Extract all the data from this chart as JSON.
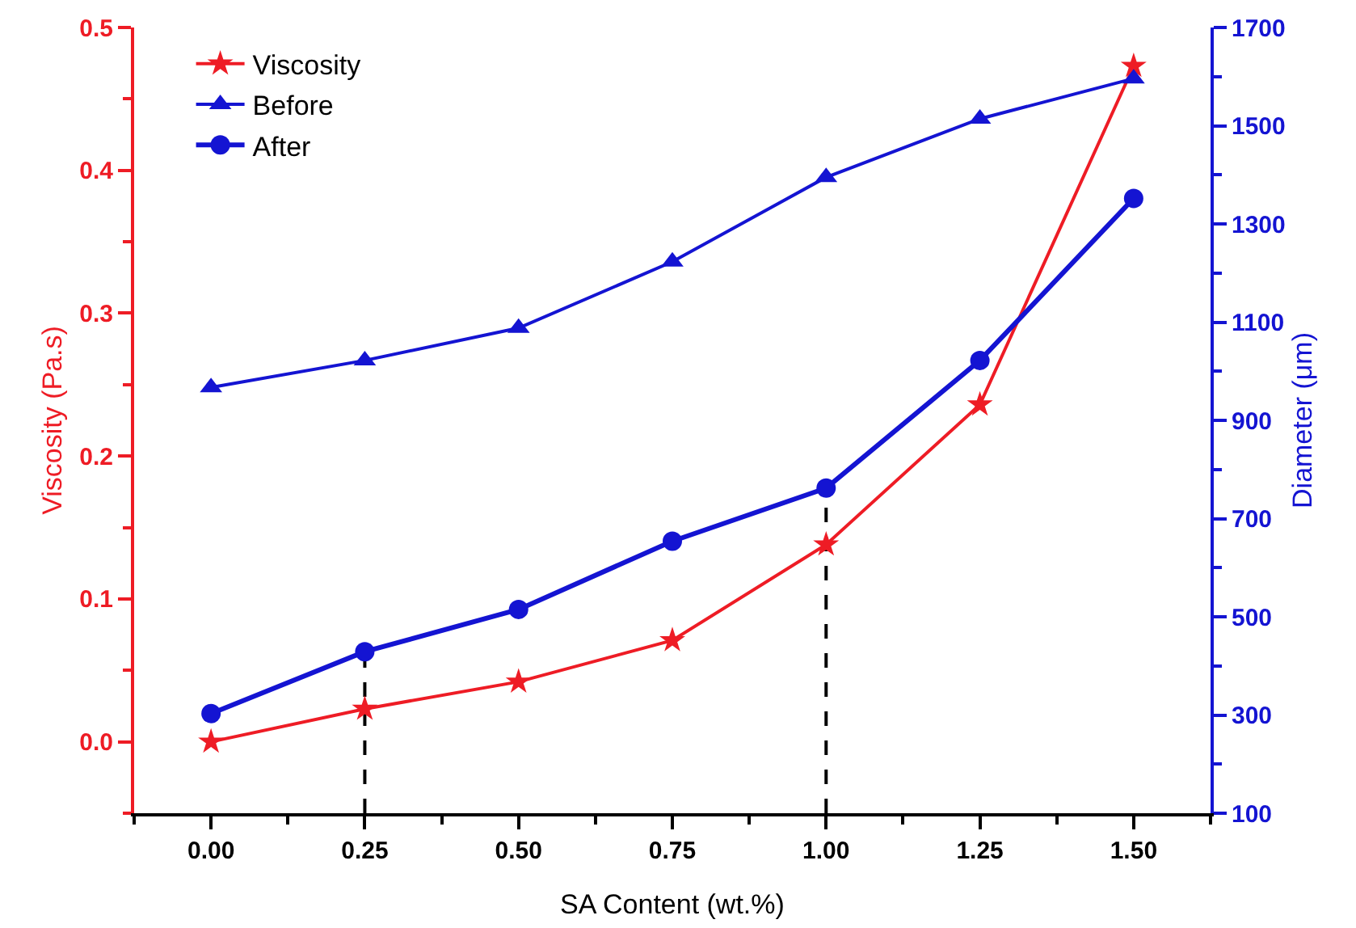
{
  "chart_data": {
    "type": "line",
    "xlabel": "SA Content (wt.%)",
    "ylabel": "Viscosity (Pa.s)",
    "y2label": "Diameter (μm)",
    "x": [
      0,
      0.25,
      0.5,
      0.75,
      1.0,
      1.25,
      1.5
    ],
    "series": [
      {
        "name": "Viscosity",
        "color": "#ee1c25",
        "marker": "star",
        "values": [
          0.0,
          0.023,
          0.042,
          0.071,
          0.138,
          0.236,
          0.473
        ]
      },
      {
        "name": "Before",
        "color": "#1414d2",
        "marker": "triangle",
        "axis": "y2",
        "values": [
          967,
          1022,
          1088,
          1223,
          1395,
          1514,
          1596
        ]
      },
      {
        "name": "After",
        "color": "#1414d2",
        "marker": "circle",
        "axis": "y2",
        "values": [
          303,
          429,
          515,
          654,
          762,
          1022,
          1352
        ]
      }
    ],
    "xlim": [
      -0.125,
      1.625
    ],
    "xticks": [
      {
        "value": 0,
        "label": "0.00"
      },
      {
        "value": 0.25,
        "label": "0.25"
      },
      {
        "value": 0.5,
        "label": "0.50"
      },
      {
        "value": 0.75,
        "label": "0.75"
      },
      {
        "value": 1,
        "label": "1.00"
      },
      {
        "value": 1.25,
        "label": "1.25"
      },
      {
        "value": 1.5,
        "label": "1.50"
      }
    ],
    "ylim": [
      -0.05,
      0.5
    ],
    "yticks": [
      {
        "value": 0,
        "label": "0.0"
      },
      0.1,
      0.2,
      0.3,
      0.4,
      0.5
    ],
    "y2lim": [
      100,
      1700
    ],
    "y2ticks": [
      100,
      300,
      500,
      700,
      900,
      1100,
      1300,
      1500,
      1700
    ],
    "ref_lines": [
      {
        "axis": "x",
        "value": 0.25,
        "color": "#000000",
        "line_style": "dashed"
      },
      {
        "axis": "x",
        "value": 1.0,
        "color": "#000000",
        "line_style": "dashed"
      }
    ],
    "grid": false,
    "legend": "top left",
    "line_style": "solid"
  }
}
